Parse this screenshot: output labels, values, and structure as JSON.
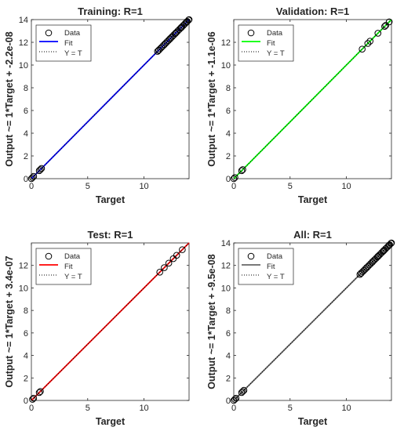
{
  "chart_data": [
    {
      "type": "scatter",
      "title": "Training: R=1",
      "xlabel": "Target",
      "ylabel": "Output ~= 1*Target + -2.2e-08",
      "xlim": [
        0,
        14
      ],
      "ylim": [
        0,
        14
      ],
      "xticks": [
        "0",
        "5",
        "10"
      ],
      "yticks": [
        "0",
        "2",
        "4",
        "6",
        "8",
        "10",
        "12",
        "14"
      ],
      "fit_color": "#0000ff",
      "legend": {
        "placement": "top-left",
        "entries": [
          "Data",
          "Fit",
          "Y = T"
        ]
      },
      "series": [
        {
          "name": "Data",
          "kind": "points",
          "x": [
            0,
            0.1,
            0.2,
            0.7,
            0.8,
            0.9,
            11.3,
            11.8,
            12.3,
            12.8,
            13.3,
            13.8,
            14.0
          ],
          "y": [
            0,
            0.1,
            0.2,
            0.7,
            0.8,
            0.9,
            11.3,
            11.8,
            12.3,
            12.8,
            13.3,
            13.8,
            14.0
          ]
        },
        {
          "name": "Fit",
          "kind": "line",
          "x": [
            0,
            14
          ],
          "y": [
            0,
            14
          ]
        },
        {
          "name": "Y = T",
          "kind": "dotted",
          "x": [
            0,
            14
          ],
          "y": [
            0,
            14
          ]
        }
      ]
    },
    {
      "type": "scatter",
      "title": "Validation: R=1",
      "xlabel": "Target",
      "ylabel": "Output ~= 1*Target + -1.1e-06",
      "xlim": [
        0,
        14
      ],
      "ylim": [
        0,
        14
      ],
      "xticks": [
        "0",
        "5",
        "10"
      ],
      "yticks": [
        "0",
        "2",
        "4",
        "6",
        "8",
        "10",
        "12"
      ],
      "fit_color": "#00ff00",
      "legend": {
        "placement": "top-left",
        "entries": [
          "Data",
          "Fit",
          "Y = T"
        ]
      },
      "series": [
        {
          "name": "Data",
          "kind": "points",
          "x": [
            0,
            0.1,
            0.7,
            0.8,
            11.4,
            11.9,
            12.1,
            12.8,
            13.4,
            13.5,
            13.8
          ],
          "y": [
            0,
            0.1,
            0.7,
            0.8,
            11.4,
            11.9,
            12.1,
            12.8,
            13.4,
            13.5,
            13.8
          ]
        },
        {
          "name": "Fit",
          "kind": "line",
          "x": [
            0,
            14
          ],
          "y": [
            0,
            14
          ]
        },
        {
          "name": "Y = T",
          "kind": "dotted",
          "x": [
            0,
            14
          ],
          "y": [
            0,
            14
          ]
        }
      ]
    },
    {
      "type": "scatter",
      "title": "Test: R=1",
      "xlabel": "Target",
      "ylabel": "Output ~= 1*Target + 3.4e-07",
      "xlim": [
        0,
        14
      ],
      "ylim": [
        0,
        14
      ],
      "xticks": [
        "0",
        "5",
        "10"
      ],
      "yticks": [
        "0",
        "2",
        "4",
        "6",
        "8",
        "10",
        "12"
      ],
      "fit_color": "#ff0000",
      "legend": {
        "placement": "top-left",
        "entries": [
          "Data",
          "Fit",
          "Y = T"
        ]
      },
      "series": [
        {
          "name": "Data",
          "kind": "points",
          "x": [
            0.1,
            0.2,
            0.7,
            0.8,
            11.4,
            11.8,
            12.2,
            12.6,
            12.9,
            13.4
          ],
          "y": [
            0.1,
            0.2,
            0.7,
            0.8,
            11.4,
            11.8,
            12.2,
            12.6,
            12.9,
            13.4
          ]
        },
        {
          "name": "Fit",
          "kind": "line",
          "x": [
            0,
            14
          ],
          "y": [
            0,
            14
          ]
        },
        {
          "name": "Y = T",
          "kind": "dotted",
          "x": [
            0,
            14
          ],
          "y": [
            0,
            14
          ]
        }
      ]
    },
    {
      "type": "scatter",
      "title": "All: R=1",
      "xlabel": "Target",
      "ylabel": "Output ~= 1*Target + -9.5e-08",
      "xlim": [
        0,
        14
      ],
      "ylim": [
        0,
        14
      ],
      "xticks": [
        "0",
        "5",
        "10"
      ],
      "yticks": [
        "0",
        "2",
        "4",
        "6",
        "8",
        "10",
        "12",
        "14"
      ],
      "fit_color": "#666666",
      "legend": {
        "placement": "top-left",
        "entries": [
          "Data",
          "Fit",
          "Y = T"
        ]
      },
      "series": [
        {
          "name": "Data",
          "kind": "points",
          "x": [
            0,
            0.1,
            0.2,
            0.7,
            0.8,
            0.9,
            11.3,
            11.8,
            12.3,
            12.8,
            13.3,
            13.8,
            14.0
          ],
          "y": [
            0,
            0.1,
            0.2,
            0.7,
            0.8,
            0.9,
            11.3,
            11.8,
            12.3,
            12.8,
            13.3,
            13.8,
            14.0
          ]
        },
        {
          "name": "Fit",
          "kind": "line",
          "x": [
            0,
            14
          ],
          "y": [
            0,
            14
          ]
        },
        {
          "name": "Y = T",
          "kind": "dotted",
          "x": [
            0,
            14
          ],
          "y": [
            0,
            14
          ]
        }
      ]
    }
  ]
}
